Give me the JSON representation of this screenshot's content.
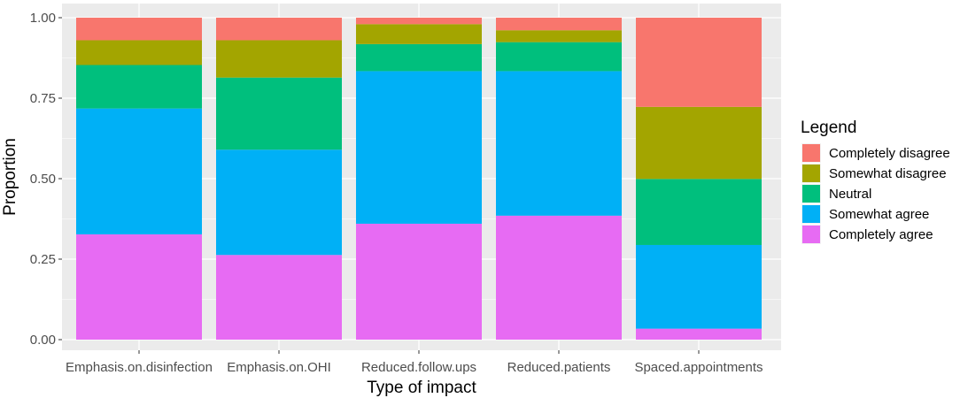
{
  "chart_data": {
    "type": "bar",
    "stacked": true,
    "xlabel": "Type of impact",
    "ylabel": "Proportion",
    "ylim": [
      0,
      1
    ],
    "yticks": [
      "0.00",
      "0.25",
      "0.50",
      "0.75",
      "1.00"
    ],
    "grid": true,
    "legend_title": "Legend",
    "legend_position": "right",
    "categories": [
      "Emphasis.on.disinfection",
      "Emphasis.on.OHI",
      "Reduced.follow.ups",
      "Reduced.patients",
      "Spaced.appointments"
    ],
    "series": [
      {
        "name": "Completely agree",
        "color": "#E76BF3",
        "values": [
          0.327,
          0.263,
          0.36,
          0.385,
          0.034
        ]
      },
      {
        "name": "Somewhat agree",
        "color": "#00B0F6",
        "values": [
          0.391,
          0.327,
          0.474,
          0.449,
          0.26
        ]
      },
      {
        "name": "Neutral",
        "color": "#00BF7D",
        "values": [
          0.135,
          0.224,
          0.084,
          0.09,
          0.205
        ]
      },
      {
        "name": "Somewhat disagree",
        "color": "#A3A500",
        "values": [
          0.077,
          0.116,
          0.062,
          0.037,
          0.224
        ]
      },
      {
        "name": "Completely disagree",
        "color": "#F8766D",
        "values": [
          0.07,
          0.07,
          0.02,
          0.039,
          0.277
        ]
      }
    ],
    "legend_order": [
      "Completely disagree",
      "Somewhat disagree",
      "Neutral",
      "Somewhat agree",
      "Completely agree"
    ],
    "colors": {
      "panel": "#EBEBEB",
      "grid": "#FFFFFF",
      "tick": "#333333"
    }
  }
}
